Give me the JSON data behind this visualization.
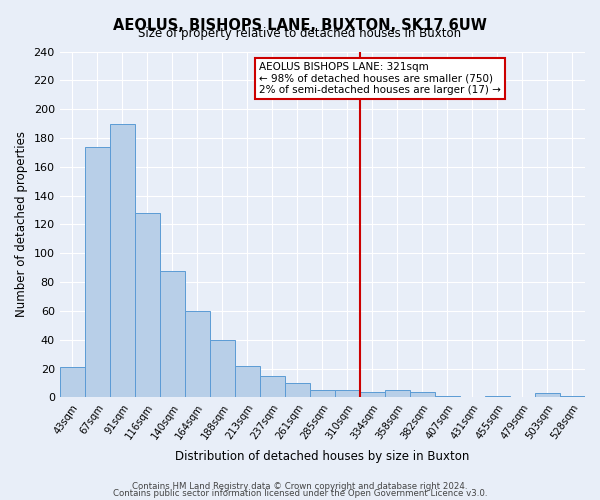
{
  "title": "AEOLUS, BISHOPS LANE, BUXTON, SK17 6UW",
  "subtitle": "Size of property relative to detached houses in Buxton",
  "xlabel": "Distribution of detached houses by size in Buxton",
  "ylabel": "Number of detached properties",
  "bar_labels": [
    "43sqm",
    "67sqm",
    "91sqm",
    "116sqm",
    "140sqm",
    "164sqm",
    "188sqm",
    "213sqm",
    "237sqm",
    "261sqm",
    "285sqm",
    "310sqm",
    "334sqm",
    "358sqm",
    "382sqm",
    "407sqm",
    "431sqm",
    "455sqm",
    "479sqm",
    "503sqm",
    "528sqm"
  ],
  "bar_heights": [
    21,
    174,
    190,
    128,
    88,
    60,
    40,
    22,
    15,
    10,
    5,
    5,
    4,
    5,
    4,
    1,
    0,
    1,
    0,
    3,
    1
  ],
  "bar_color": "#b8cfe8",
  "bar_edge_color": "#5b9bd5",
  "ylim": [
    0,
    240
  ],
  "yticks": [
    0,
    20,
    40,
    60,
    80,
    100,
    120,
    140,
    160,
    180,
    200,
    220,
    240
  ],
  "vline_x": 11.5,
  "vline_color": "#cc0000",
  "annotation_title": "AEOLUS BISHOPS LANE: 321sqm",
  "annotation_line1": "← 98% of detached houses are smaller (750)",
  "annotation_line2": "2% of semi-detached houses are larger (17) →",
  "footer1": "Contains HM Land Registry data © Crown copyright and database right 2024.",
  "footer2": "Contains public sector information licensed under the Open Government Licence v3.0.",
  "background_color": "#e8eef8",
  "grid_color": "#ffffff"
}
